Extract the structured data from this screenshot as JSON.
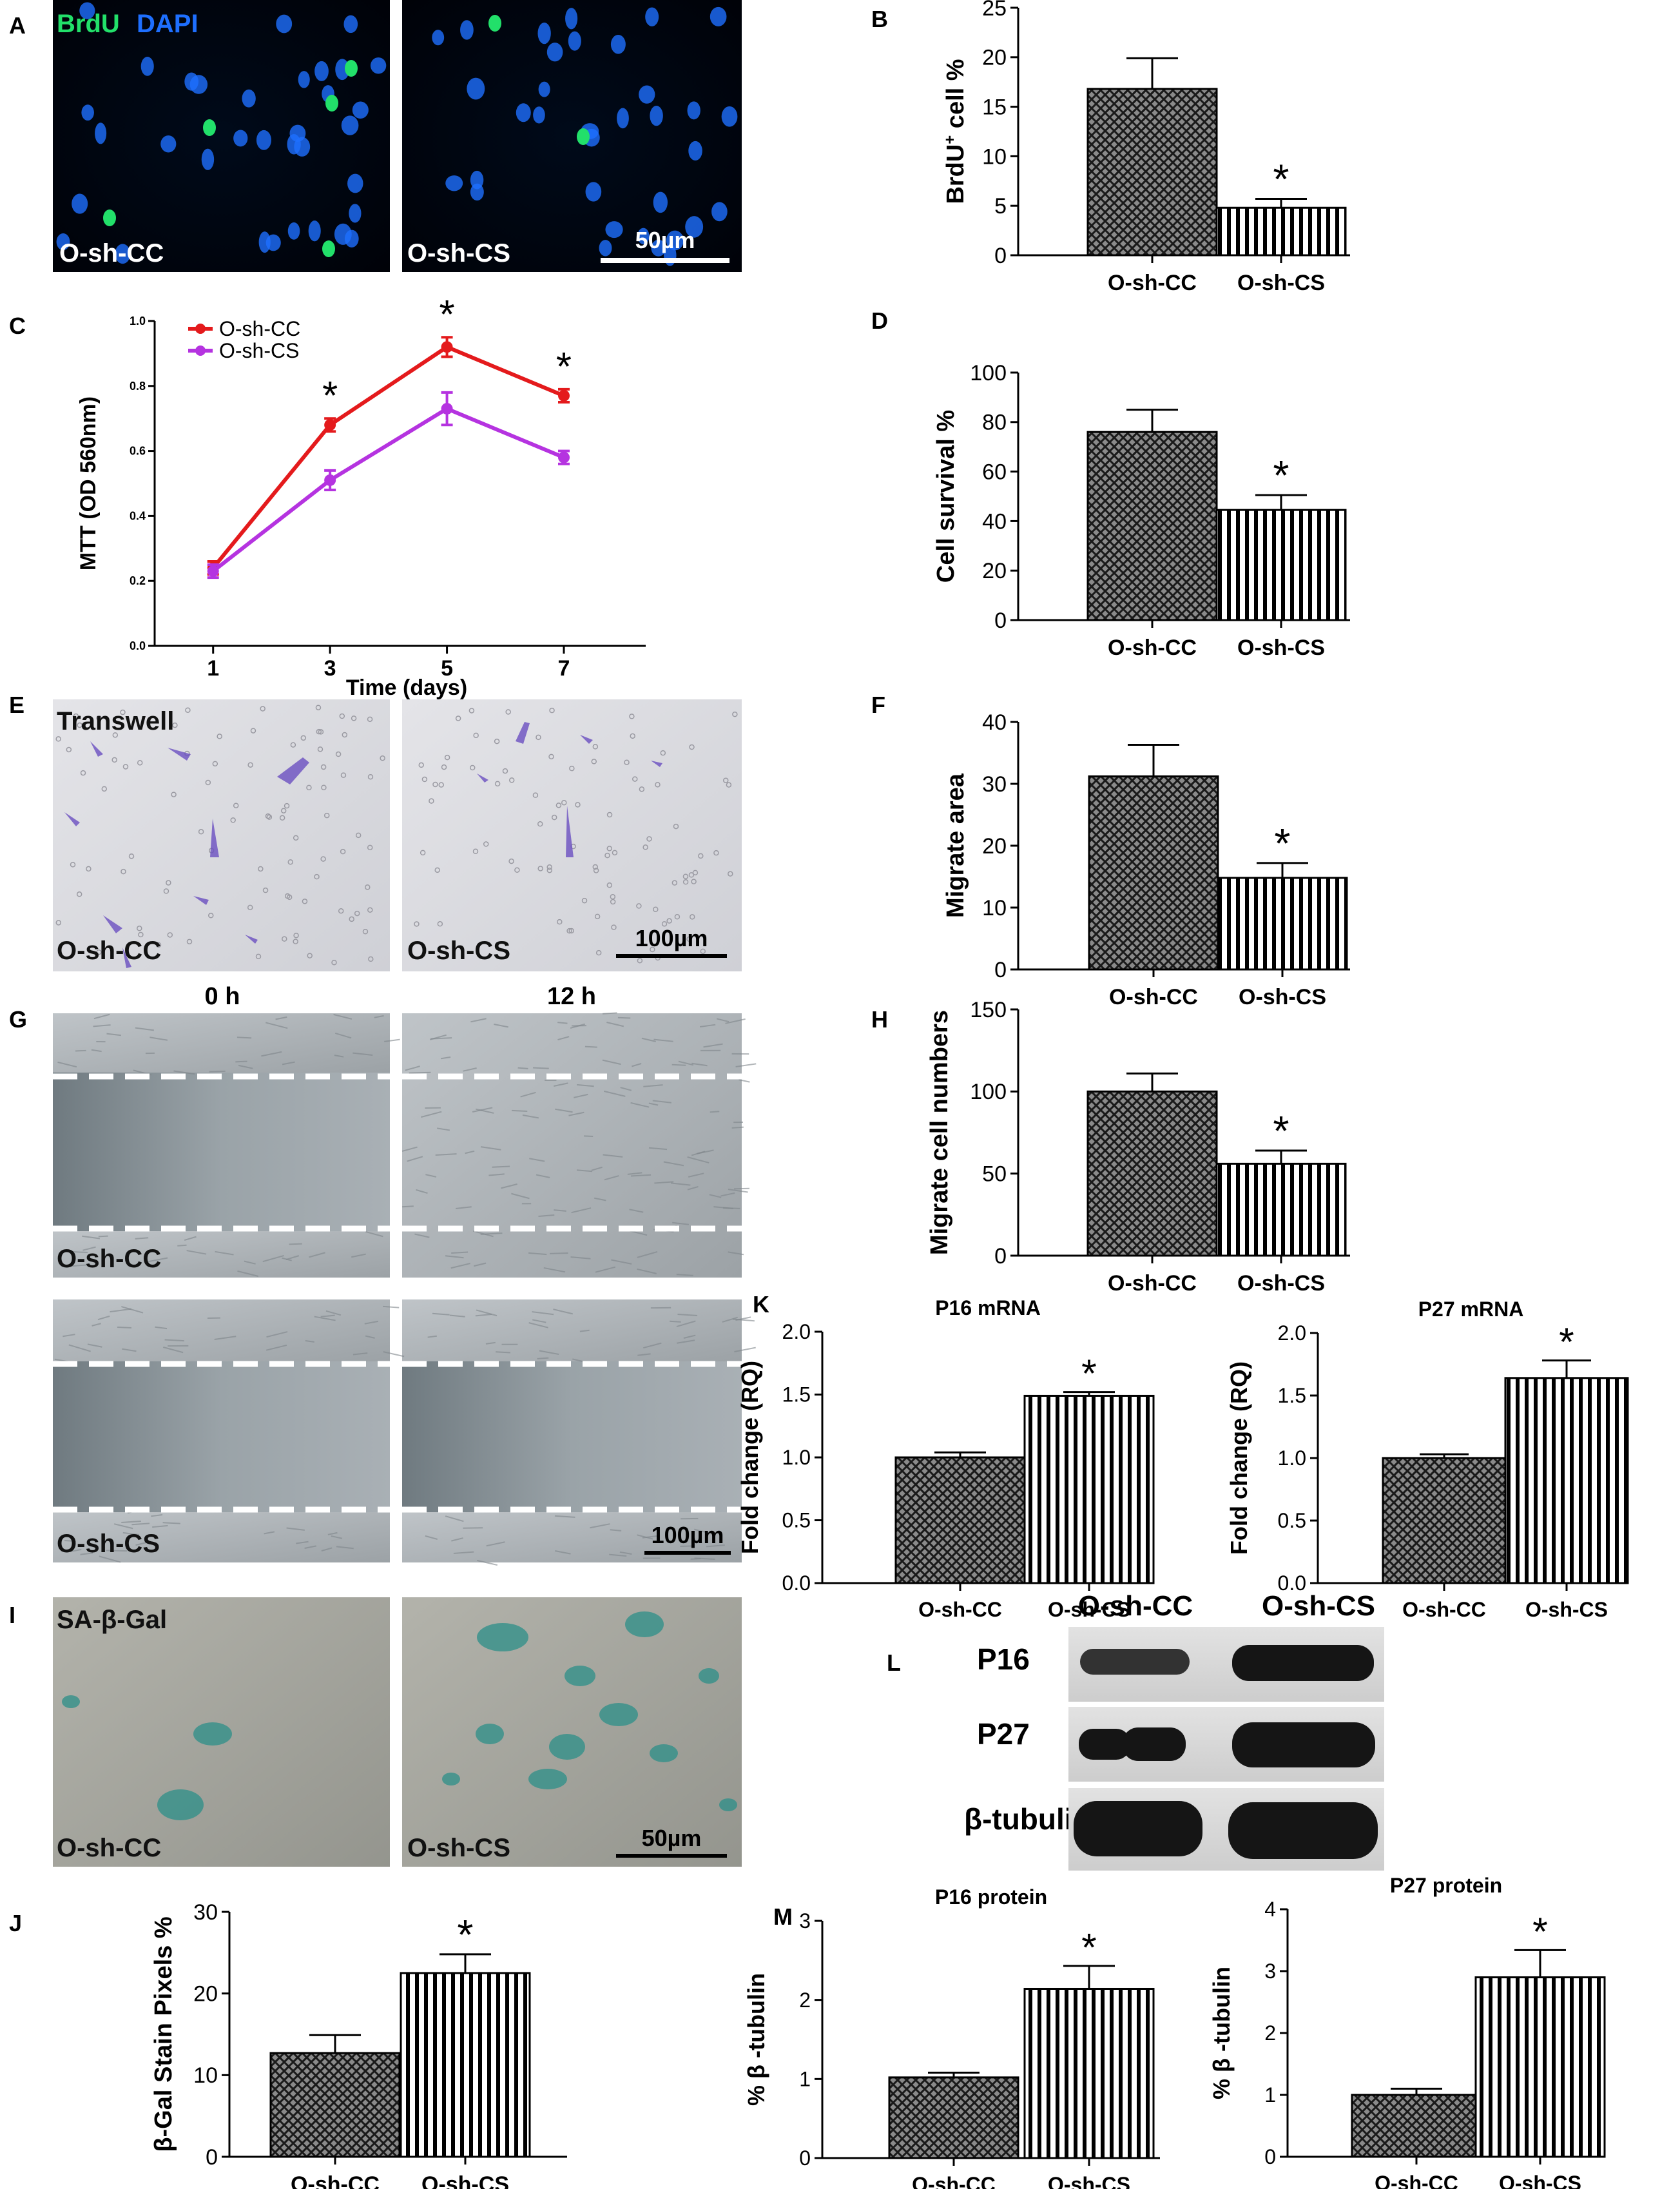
{
  "figure": {
    "panel_letters": [
      "A",
      "B",
      "C",
      "D",
      "E",
      "F",
      "G",
      "H",
      "I",
      "J",
      "K",
      "L",
      "M"
    ],
    "colors": {
      "o_sh_cc_line": "#e41a1c",
      "o_sh_cs_line": "#b533e0",
      "brdu_green": "#22e06a",
      "dapi_blue": "#1e6fff",
      "micrograph_dark_bg": "#000410",
      "transwell_bg": "#dcdde2",
      "scratch_bg": "#8f979c",
      "sagal_bg": "#a3a49d",
      "sagal_stain": "#2c8f88"
    },
    "images": {
      "A": {
        "overlay_text_brdu": "BrdU",
        "overlay_text_dapi": "DAPI",
        "left_label": "O-sh-CC",
        "right_label": "O-sh-CS",
        "scale_bar": "50µm"
      },
      "E": {
        "title": "Transwell",
        "left_label": "O-sh-CC",
        "right_label": "O-sh-CS",
        "scale_bar": "100µm"
      },
      "G": {
        "col_0h": "0 h",
        "col_12h": "12 h",
        "top_label": "O-sh-CC",
        "bottom_label": "O-sh-CS",
        "scale_bar": "100µm"
      },
      "I": {
        "title": "SA-β-Gal",
        "left_label": "O-sh-CC",
        "right_label": "O-sh-CS",
        "scale_bar": "50µm"
      },
      "L": {
        "col_labels": [
          "O-sh-CC",
          "O-sh-CS"
        ],
        "row_labels": [
          "P16",
          "P27",
          "β-tubulin"
        ]
      }
    }
  },
  "chart_data": [
    {
      "panel": "B",
      "type": "bar",
      "title": "",
      "ylabel_main": "BrdU",
      "ylabel_sup": "+",
      "ylabel_rest": " cell %",
      "categories": [
        "O-sh-CC",
        "O-sh-CS"
      ],
      "values": [
        16.8,
        4.8
      ],
      "errors": [
        3.1,
        0.9
      ],
      "ylim": [
        0,
        25
      ],
      "yticks": [
        0,
        5,
        10,
        15,
        20,
        25
      ],
      "significance": [
        "",
        "*"
      ]
    },
    {
      "panel": "C",
      "type": "line",
      "xlabel": "Time (days)",
      "ylabel": "MTT (OD 560nm)",
      "x": [
        1,
        3,
        5,
        7
      ],
      "xlim": [
        0,
        8.4
      ],
      "ylim": [
        0,
        1.0
      ],
      "yticks": [
        "0.0",
        "0.2",
        "0.4",
        "0.6",
        "0.8",
        "1.0"
      ],
      "series": [
        {
          "name": "O-sh-CC",
          "values": [
            0.24,
            0.68,
            0.92,
            0.77
          ],
          "errors": [
            0.02,
            0.02,
            0.03,
            0.02
          ]
        },
        {
          "name": "O-sh-CS",
          "values": [
            0.23,
            0.51,
            0.73,
            0.58
          ],
          "errors": [
            0.02,
            0.03,
            0.05,
            0.02
          ]
        }
      ],
      "significance": [
        "",
        "*",
        "*",
        "*"
      ]
    },
    {
      "panel": "D",
      "type": "bar",
      "ylabel": "Cell survival %",
      "categories": [
        "O-sh-CC",
        "O-sh-CS"
      ],
      "values": [
        76,
        44.5
      ],
      "errors": [
        9,
        6
      ],
      "ylim": [
        0,
        100
      ],
      "yticks": [
        0,
        20,
        40,
        60,
        80,
        100
      ],
      "significance": [
        "",
        "*"
      ]
    },
    {
      "panel": "F",
      "type": "bar",
      "ylabel": "Migrate area",
      "categories": [
        "O-sh-CC",
        "O-sh-CS"
      ],
      "values": [
        31.2,
        14.8
      ],
      "errors": [
        5.1,
        2.4
      ],
      "ylim": [
        0,
        40
      ],
      "yticks": [
        0,
        10,
        20,
        30,
        40
      ],
      "significance": [
        "",
        "*"
      ]
    },
    {
      "panel": "H",
      "type": "bar",
      "ylabel": "Migrate cell numbers",
      "categories": [
        "O-sh-CC",
        "O-sh-CS"
      ],
      "values": [
        100,
        56
      ],
      "errors": [
        11,
        8
      ],
      "ylim": [
        0,
        150
      ],
      "yticks": [
        0,
        50,
        100,
        150
      ],
      "significance": [
        "",
        "*"
      ]
    },
    {
      "panel": "K1",
      "type": "bar",
      "title": "P16 mRNA",
      "ylabel": "Fold change (RQ)",
      "categories": [
        "O-sh-CC",
        "O-sh-CS"
      ],
      "values": [
        1.0,
        1.49
      ],
      "errors": [
        0.04,
        0.03
      ],
      "ylim": [
        0,
        2.0
      ],
      "yticks": [
        "0.0",
        "0.5",
        "1.0",
        "1.5",
        "2.0"
      ],
      "significance": [
        "",
        "*"
      ]
    },
    {
      "panel": "K2",
      "type": "bar",
      "title": "P27 mRNA",
      "ylabel": "Fold change (RQ)",
      "categories": [
        "O-sh-CC",
        "O-sh-CS"
      ],
      "values": [
        1.0,
        1.64
      ],
      "errors": [
        0.03,
        0.14
      ],
      "ylim": [
        0,
        2.0
      ],
      "yticks": [
        "0.0",
        "0.5",
        "1.0",
        "1.5",
        "2.0"
      ],
      "significance": [
        "",
        "*"
      ]
    },
    {
      "panel": "J",
      "type": "bar",
      "ylabel": "β-Gal Stain Pixels %",
      "categories": [
        "O-sh-CC",
        "O-sh-CS"
      ],
      "values": [
        12.7,
        22.5
      ],
      "errors": [
        2.2,
        2.3
      ],
      "ylim": [
        0,
        30
      ],
      "yticks": [
        0,
        10,
        20,
        30
      ],
      "significance": [
        "",
        "*"
      ]
    },
    {
      "panel": "M1",
      "type": "bar",
      "title": "P16 protein",
      "ylabel": "% β -tubulin",
      "categories": [
        "O-sh-CC",
        "O-sh-CS"
      ],
      "values": [
        1.02,
        2.14
      ],
      "errors": [
        0.06,
        0.29
      ],
      "ylim": [
        0,
        3
      ],
      "yticks": [
        0,
        1,
        2,
        3
      ],
      "significance": [
        "",
        "*"
      ]
    },
    {
      "panel": "M2",
      "type": "bar",
      "title": "P27 protein",
      "ylabel": "% β -tubulin",
      "categories": [
        "O-sh-CC",
        "O-sh-CS"
      ],
      "values": [
        1.0,
        2.9
      ],
      "errors": [
        0.1,
        0.44
      ],
      "ylim": [
        0,
        4
      ],
      "yticks": [
        0,
        1,
        2,
        3,
        4
      ],
      "significance": [
        "",
        "*"
      ]
    }
  ]
}
